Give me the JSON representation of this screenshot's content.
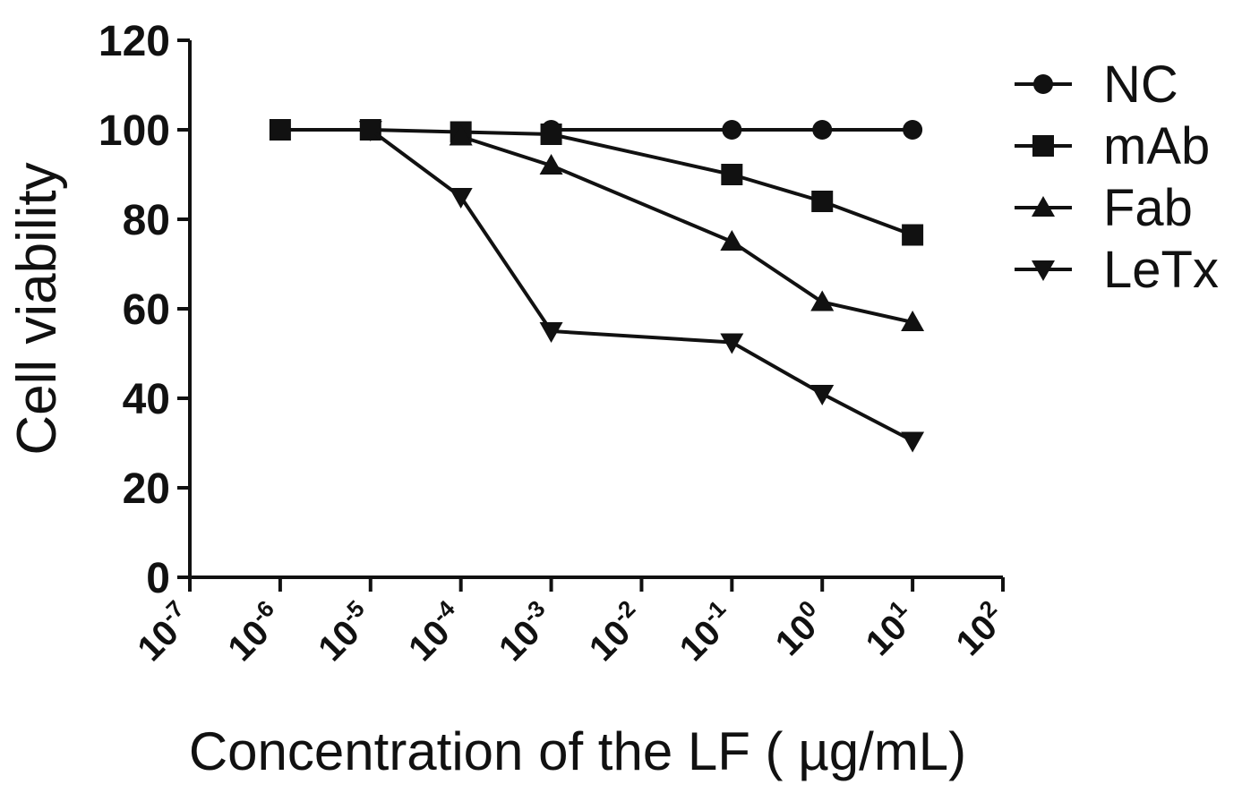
{
  "chart_data": {
    "type": "line",
    "title": "",
    "xlabel": "Concentration of the LF ( µg/mL)",
    "ylabel": "Cell viability",
    "x_scale": "log",
    "xlim_exp": [
      -7,
      2
    ],
    "x_tick_labels": [
      {
        "base": "10",
        "exp": "-7"
      },
      {
        "base": "10",
        "exp": "-6"
      },
      {
        "base": "10",
        "exp": "-5"
      },
      {
        "base": "10",
        "exp": "-4"
      },
      {
        "base": "10",
        "exp": "-3"
      },
      {
        "base": "10",
        "exp": "-2"
      },
      {
        "base": "10",
        "exp": "-1"
      },
      {
        "base": "10",
        "exp": "0"
      },
      {
        "base": "10",
        "exp": "1"
      },
      {
        "base": "10",
        "exp": "2"
      }
    ],
    "ylim": [
      0,
      120
    ],
    "y_ticks": [
      "0",
      "20",
      "40",
      "60",
      "80",
      "100",
      "120"
    ],
    "grid": false,
    "legend_position": "top-right",
    "series": [
      {
        "name": "NC",
        "marker": "circle",
        "x_exp": [
          -3,
          -1,
          0,
          1
        ],
        "values": [
          100,
          100,
          100,
          100
        ]
      },
      {
        "name": "mAb",
        "marker": "square",
        "x_exp": [
          -6,
          -5,
          -4,
          -3,
          -1,
          0,
          1
        ],
        "values": [
          100,
          100,
          99.5,
          99,
          90,
          84,
          76.5
        ]
      },
      {
        "name": "Fab",
        "marker": "triangle-up",
        "x_exp": [
          -4,
          -3,
          -1,
          0,
          1
        ],
        "values": [
          98.5,
          92,
          75,
          61.5,
          57
        ]
      },
      {
        "name": "LeTx",
        "marker": "triangle-down",
        "x_exp": [
          -5,
          -4,
          -3,
          -1,
          0,
          1
        ],
        "values": [
          100,
          85,
          55,
          52.5,
          41,
          30.5
        ]
      }
    ]
  }
}
